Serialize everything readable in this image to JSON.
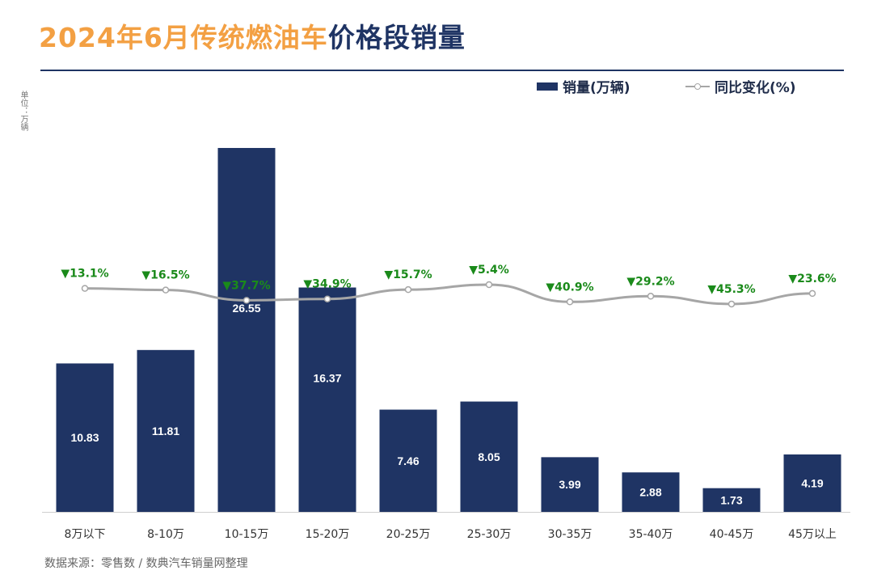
{
  "header": {
    "title_highlight": "2024年6月传统燃油车",
    "title_main": "价格段销量"
  },
  "unit_label": "单位：万辆",
  "legend": {
    "bar_label": "销量(万辆)",
    "line_label": "同比变化(%)"
  },
  "source": "数据来源：零售数 / 数典汽车销量网整理",
  "colors": {
    "bar": "#1f3464",
    "line": "#a6a6a6",
    "yoy_label": "#1a8a1a",
    "title_orange": "#f3a043"
  },
  "chart_data": {
    "type": "bar",
    "categories": [
      "8万以下",
      "8-10万",
      "10-15万",
      "15-20万",
      "20-25万",
      "25-30万",
      "30-35万",
      "35-40万",
      "40-45万",
      "45万以上"
    ],
    "series": [
      {
        "name": "销量(万辆)",
        "type": "bar",
        "values": [
          10.83,
          11.81,
          26.55,
          16.37,
          7.46,
          8.05,
          3.99,
          2.88,
          1.73,
          4.19
        ]
      },
      {
        "name": "同比变化(%)",
        "type": "line",
        "values": [
          -13.1,
          -16.5,
          -37.7,
          -34.9,
          -15.7,
          -5.4,
          -40.9,
          -29.2,
          -45.3,
          -23.6
        ],
        "labels": [
          "▼13.1%",
          "▼16.5%",
          "▼37.7%",
          "▼34.9%",
          "▼15.7%",
          "▼5.4%",
          "▼40.9%",
          "▼29.2%",
          "▼45.3%",
          "▼23.6%"
        ]
      }
    ],
    "ylim": [
      0,
      28
    ],
    "legend_position": "top-right",
    "grid": false
  }
}
